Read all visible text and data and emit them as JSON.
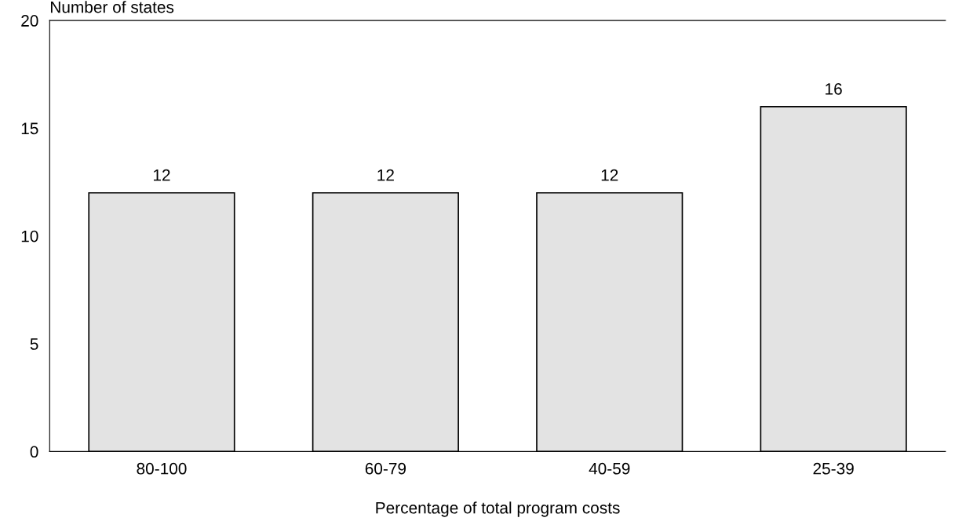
{
  "chart_data": {
    "type": "bar",
    "xlabel": "Percentage of total program costs",
    "ylabel": "Number of states",
    "categories": [
      "80-100",
      "60-79",
      "40-59",
      "25-39"
    ],
    "values": [
      12,
      12,
      12,
      16
    ],
    "color": "#e3e3e3",
    "ylim": [
      0,
      20
    ],
    "yticks": [
      0,
      5,
      10,
      15,
      20
    ],
    "grid": false,
    "data_labels": true
  }
}
